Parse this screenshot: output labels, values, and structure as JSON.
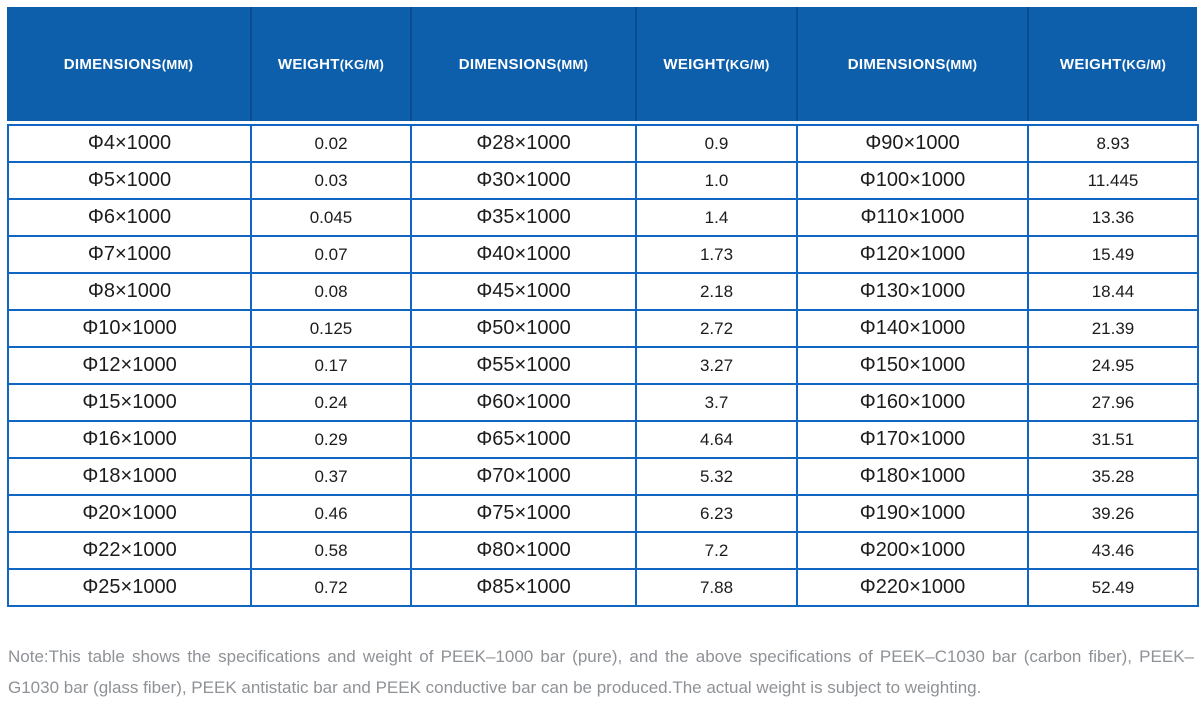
{
  "table": {
    "headers": [
      {
        "label": "DIMENSIONS",
        "unit": "(MM)"
      },
      {
        "label": "WEIGHT",
        "unit": "(KG/M)"
      },
      {
        "label": "DIMENSIONS",
        "unit": "(MM)"
      },
      {
        "label": "WEIGHT",
        "unit": "(KG/M)"
      },
      {
        "label": "DIMENSIONS",
        "unit": "(MM)"
      },
      {
        "label": "WEIGHT",
        "unit": "(KG/M)"
      }
    ],
    "rows": [
      [
        "Φ4×1000",
        "0.02",
        "Φ28×1000",
        "0.9",
        "Φ90×1000",
        "8.93"
      ],
      [
        "Φ5×1000",
        "0.03",
        "Φ30×1000",
        "1.0",
        "Φ100×1000",
        "11.445"
      ],
      [
        "Φ6×1000",
        "0.045",
        "Φ35×1000",
        "1.4",
        "Φ110×1000",
        "13.36"
      ],
      [
        "Φ7×1000",
        "0.07",
        "Φ40×1000",
        "1.73",
        "Φ120×1000",
        "15.49"
      ],
      [
        "Φ8×1000",
        "0.08",
        "Φ45×1000",
        "2.18",
        "Φ130×1000",
        "18.44"
      ],
      [
        "Φ10×1000",
        "0.125",
        "Φ50×1000",
        "2.72",
        "Φ140×1000",
        "21.39"
      ],
      [
        "Φ12×1000",
        "0.17",
        "Φ55×1000",
        "3.27",
        "Φ150×1000",
        "24.95"
      ],
      [
        "Φ15×1000",
        "0.24",
        "Φ60×1000",
        "3.7",
        "Φ160×1000",
        "27.96"
      ],
      [
        "Φ16×1000",
        "0.29",
        "Φ65×1000",
        "4.64",
        "Φ170×1000",
        "31.51"
      ],
      [
        "Φ18×1000",
        "0.37",
        "Φ70×1000",
        "5.32",
        "Φ180×1000",
        "35.28"
      ],
      [
        "Φ20×1000",
        "0.46",
        "Φ75×1000",
        "6.23",
        "Φ190×1000",
        "39.26"
      ],
      [
        "Φ22×1000",
        "0.58",
        "Φ80×1000",
        "7.2",
        "Φ200×1000",
        "43.46"
      ],
      [
        "Φ25×1000",
        "0.72",
        "Φ85×1000",
        "7.88",
        "Φ220×1000",
        "52.49"
      ]
    ]
  },
  "note": "Note:This table shows the specifications and weight of PEEK–1000 bar (pure), and the above specifications of PEEK–C1030 bar (carbon fiber), PEEK–G1030 bar (glass fiber), PEEK antistatic bar and PEEK conductive bar can be produced.The actual weight is subject to weighting.",
  "colors": {
    "header_bg": "#0e5fab",
    "header_divider": "#0a4c90",
    "cell_border": "#1166c4",
    "body_text": "#1c1c1e",
    "note_text": "#8e9296"
  }
}
